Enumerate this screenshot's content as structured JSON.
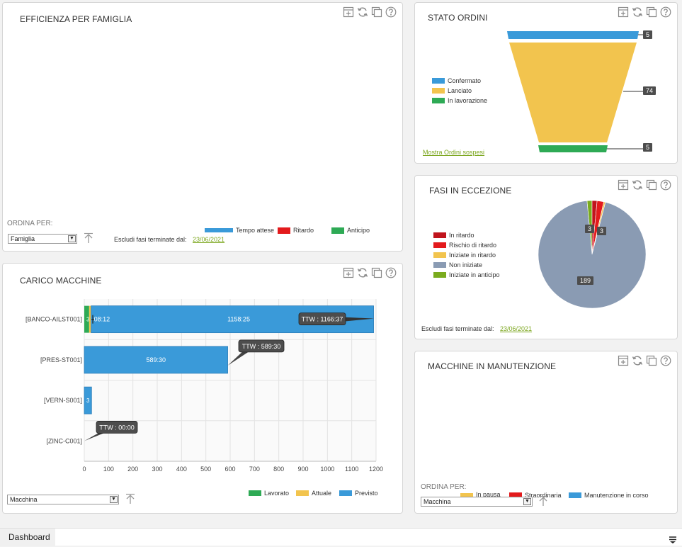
{
  "efficienza": {
    "title": "EFFICIENZA PER FAMIGLIA",
    "sort_label": "ORDINA PER:",
    "sort_value": "Famiglia",
    "exclude_label": "Escludi fasi terminate dal:",
    "exclude_date": "23/06/2021",
    "legend": [
      {
        "label": "Tempo attese",
        "color": "#3a9ad9"
      },
      {
        "label": "Ritardo",
        "color": "#e31a1c"
      },
      {
        "label": "Anticipo",
        "color": "#2eaa55"
      }
    ]
  },
  "stato_ordini": {
    "title": "STATO ORDINI",
    "legend": [
      {
        "label": "Confermato",
        "color": "#3a9ad9"
      },
      {
        "label": "Lanciato",
        "color": "#f2c44e"
      },
      {
        "label": "In lavorazione",
        "color": "#2eaa55"
      }
    ],
    "values": [
      "5",
      "74",
      "5"
    ],
    "link": "Mostra Ordini sospesi"
  },
  "fasi": {
    "title": "FASI IN ECCEZIONE",
    "legend": [
      {
        "label": "In ritardo",
        "color": "#c0141c"
      },
      {
        "label": "Rischio di ritardo",
        "color": "#e31a1c"
      },
      {
        "label": "Iniziate in ritardo",
        "color": "#f2c44e"
      },
      {
        "label": "Non iniziate",
        "color": "#8a9bb3"
      },
      {
        "label": "Iniziate in anticipo",
        "color": "#7aab1e"
      }
    ],
    "pie": [
      {
        "label": "Iniziate in anticipo",
        "value": 3,
        "color": "#7aab1e"
      },
      {
        "label": "In ritardo",
        "value": 3,
        "color": "#c0141c"
      },
      {
        "label": "Rischio di ritardo",
        "value": 4,
        "color": "#e31a1c"
      },
      {
        "label": "Iniziate in ritardo",
        "value": 1,
        "color": "#f2c44e"
      },
      {
        "label": "Non iniziate",
        "value": 189,
        "color": "#8a9bb3"
      }
    ],
    "slice_labels": [
      "3",
      "3",
      "189"
    ],
    "exclude_label": "Escludi fasi terminate dal:",
    "exclude_date": "23/06/2021"
  },
  "carico": {
    "title": "CARICO MACCHINE",
    "sort_value": "Macchina",
    "legend": [
      {
        "label": "Lavorato",
        "color": "#2eaa55"
      },
      {
        "label": "Attuale",
        "color": "#f2c44e"
      },
      {
        "label": "Previsto",
        "color": "#3a9ad9"
      }
    ],
    "x_ticks": [
      "0",
      "100",
      "200",
      "300",
      "400",
      "500",
      "600",
      "700",
      "800",
      "900",
      "1000",
      "1100",
      "1200"
    ],
    "rows": [
      {
        "label": "[BANCO-AILST001]",
        "inner_small": "3",
        "inner_mid": "08:12",
        "inner_big": "1158:25",
        "ttw": "TTW : 1166:37"
      },
      {
        "label": "[PRES-ST001]",
        "inner_big": "589:30",
        "ttw": "TTW : 589:30"
      },
      {
        "label": "[VERN-S001]",
        "inner_small": "3"
      },
      {
        "label": "[ZINC-C001]",
        "ttw": "TTW : 00:00"
      }
    ]
  },
  "manutenzione": {
    "title": "MACCHINE IN MANUTENZIONE",
    "sort_label": "ORDINA PER:",
    "sort_value": "Macchina",
    "legend": [
      {
        "label": "In pausa",
        "color": "#f2c44e"
      },
      {
        "label": "Straordinaria",
        "color": "#e31a1c"
      },
      {
        "label": "Manutenzione in corso",
        "color": "#3a9ad9"
      }
    ]
  },
  "footer": {
    "tab": "Dashboard"
  },
  "chart_data": [
    {
      "type": "bar",
      "title": "CARICO MACCHINE",
      "orientation": "horizontal",
      "stacked": true,
      "categories": [
        "[BANCO-AILST001]",
        "[PRES-ST001]",
        "[VERN-S001]",
        "[ZINC-C001]"
      ],
      "series": [
        {
          "name": "Lavorato",
          "values": [
            20,
            0,
            0,
            0
          ]
        },
        {
          "name": "Attuale",
          "values": [
            8,
            0,
            0,
            0
          ]
        },
        {
          "name": "Previsto",
          "values": [
            1162,
            590,
            30,
            0
          ]
        }
      ],
      "xlim": [
        0,
        1200
      ],
      "grid": true,
      "legend": "bottom-right"
    },
    {
      "type": "pie",
      "title": "FASI IN ECCEZIONE",
      "categories": [
        "In ritardo",
        "Rischio di ritardo",
        "Iniziate in ritardo",
        "Non iniziate",
        "Iniziate in anticipo"
      ],
      "values": [
        3,
        4,
        1,
        189,
        3
      ],
      "legend": "left"
    },
    {
      "type": "bar",
      "title": "STATO ORDINI",
      "categories": [
        "Confermato",
        "Lanciato",
        "In lavorazione"
      ],
      "values": [
        5,
        74,
        5
      ],
      "legend": "left"
    }
  ]
}
